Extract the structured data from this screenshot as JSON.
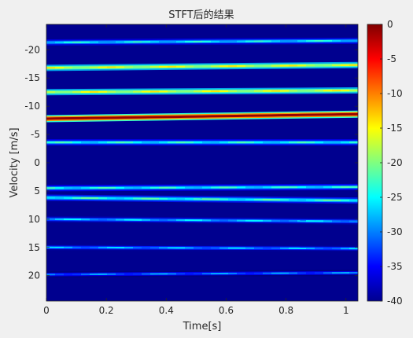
{
  "chart_data": {
    "type": "heatmap",
    "title": "STFT后的结果",
    "xlabel": "Time[s]",
    "ylabel": "Velocity [m/s]",
    "xlim": [
      0,
      1.04
    ],
    "ylim": [
      -24.5,
      24.5
    ],
    "y_reversed": true,
    "x_ticks": [
      "0",
      "0.2",
      "0.4",
      "0.6",
      "0.8",
      "1"
    ],
    "y_ticks": [
      "-20",
      "-15",
      "-10",
      "-5",
      "0",
      "5",
      "10",
      "15",
      "20"
    ],
    "colorbar": {
      "colormap": "jet",
      "clim": [
        -40,
        0
      ],
      "ticks": [
        "0",
        "-5",
        "-10",
        "-15",
        "-20",
        "-25",
        "-30",
        "-35",
        "-40"
      ]
    },
    "grid": false,
    "bands": [
      {
        "velocity_start": -7.8,
        "velocity_end": -8.6,
        "peak_db": -1
      },
      {
        "velocity_start": -16.8,
        "velocity_end": -17.3,
        "peak_db": -17
      },
      {
        "velocity_start": -12.5,
        "velocity_end": -12.8,
        "peak_db": -17
      },
      {
        "velocity_start": -21.3,
        "velocity_end": -21.6,
        "peak_db": -26
      },
      {
        "velocity_start": -3.6,
        "velocity_end": -3.6,
        "peak_db": -25
      },
      {
        "velocity_start": 4.5,
        "velocity_end": 4.3,
        "peak_db": -25
      },
      {
        "velocity_start": 6.2,
        "velocity_end": 6.7,
        "peak_db": -24
      },
      {
        "velocity_start": 10.0,
        "velocity_end": 10.4,
        "peak_db": -28
      },
      {
        "velocity_start": 15.0,
        "velocity_end": 15.2,
        "peak_db": -29
      },
      {
        "velocity_start": 19.8,
        "velocity_end": 19.5,
        "peak_db": -31
      }
    ]
  }
}
